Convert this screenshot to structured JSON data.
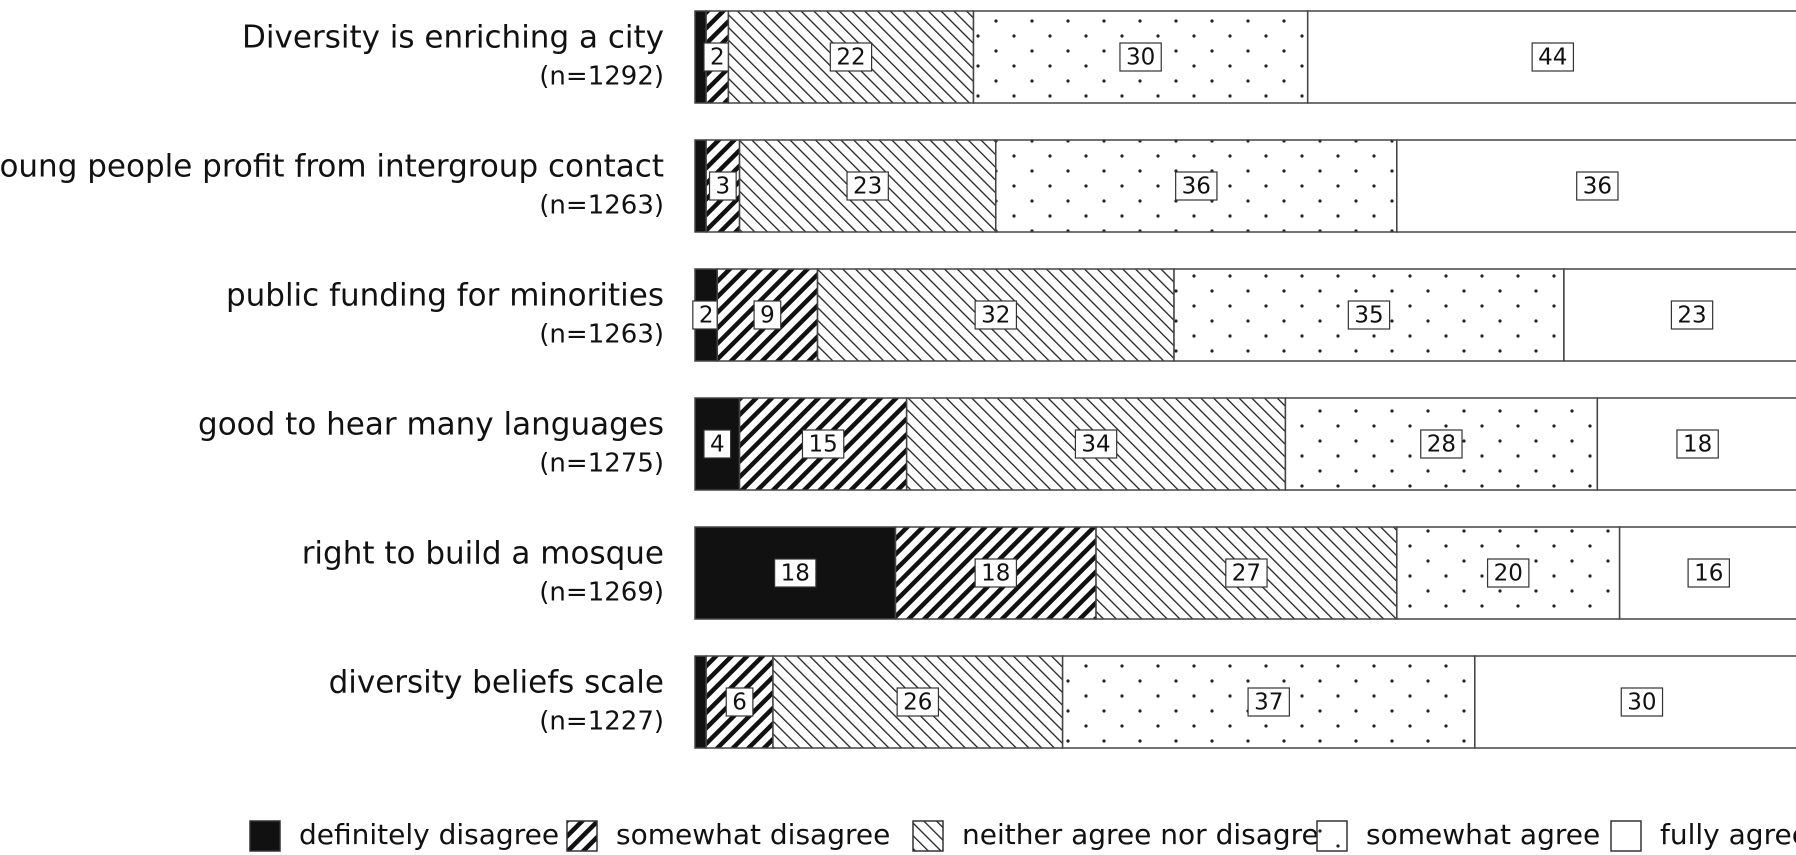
{
  "chart_data": {
    "type": "stacked_barh",
    "categories": [
      "Diversity is enriching a city",
      "young people profit from intergroup contact",
      "public funding for minorities",
      "good to hear many languages",
      "right to build a mosque",
      "diversity beliefs scale"
    ],
    "sample_sizes": [
      "(n=1292)",
      "(n=1263)",
      "(n=1263)",
      "(n=1275)",
      "(n=1269)",
      "(n=1227)"
    ],
    "xlim": [
      0,
      100
    ],
    "legend": "bottom",
    "series": [
      {
        "name": "definitely disagree",
        "color": "#111111",
        "pattern": "solid",
        "values": [
          1,
          1,
          2,
          4,
          18,
          1
        ],
        "value_labels": [
          null,
          null,
          "2",
          "4",
          "18",
          null
        ]
      },
      {
        "name": "somewhat disagree",
        "color": "#111111",
        "pattern": "dense-hatch",
        "values": [
          2,
          3,
          9,
          15,
          18,
          6
        ]
      },
      {
        "name": "neither agree nor disagree",
        "color": "#111111",
        "pattern": "light-hatch",
        "values": [
          22,
          23,
          32,
          34,
          27,
          26
        ]
      },
      {
        "name": "somewhat agree",
        "color": "#111111",
        "pattern": "dots",
        "values": [
          30,
          36,
          35,
          28,
          20,
          37
        ]
      },
      {
        "name": "fully agree",
        "color": "#111111",
        "pattern": "none",
        "values": [
          44,
          36,
          23,
          18,
          16,
          30
        ]
      }
    ]
  }
}
